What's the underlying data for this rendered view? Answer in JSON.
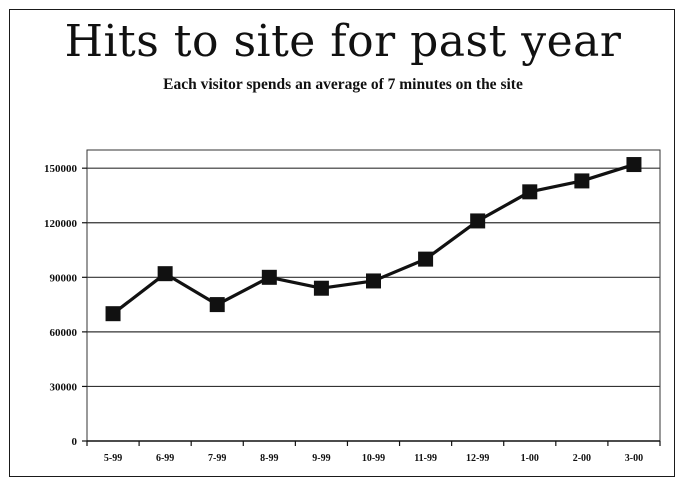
{
  "chart_data": {
    "type": "line",
    "title": "Hits to site for past year",
    "subtitle": "Each visitor spends an average of 7 minutes on the site",
    "categories": [
      "5-99",
      "6-99",
      "7-99",
      "8-99",
      "9-99",
      "10-99",
      "11-99",
      "12-99",
      "1-00",
      "2-00",
      "3-00"
    ],
    "series": [
      {
        "values": [
          70000,
          92000,
          75000,
          90000,
          84000,
          88000,
          100000,
          121000,
          137000,
          143000,
          152000
        ]
      }
    ],
    "yticks": [
      "0",
      "30000",
      "60000",
      "90000",
      "120000",
      "150000"
    ],
    "ylim": [
      0,
      160000
    ],
    "grid": true,
    "legend": "none",
    "colors": {
      "line": "#111111",
      "marker": "#111111",
      "grid": "#333333"
    }
  }
}
